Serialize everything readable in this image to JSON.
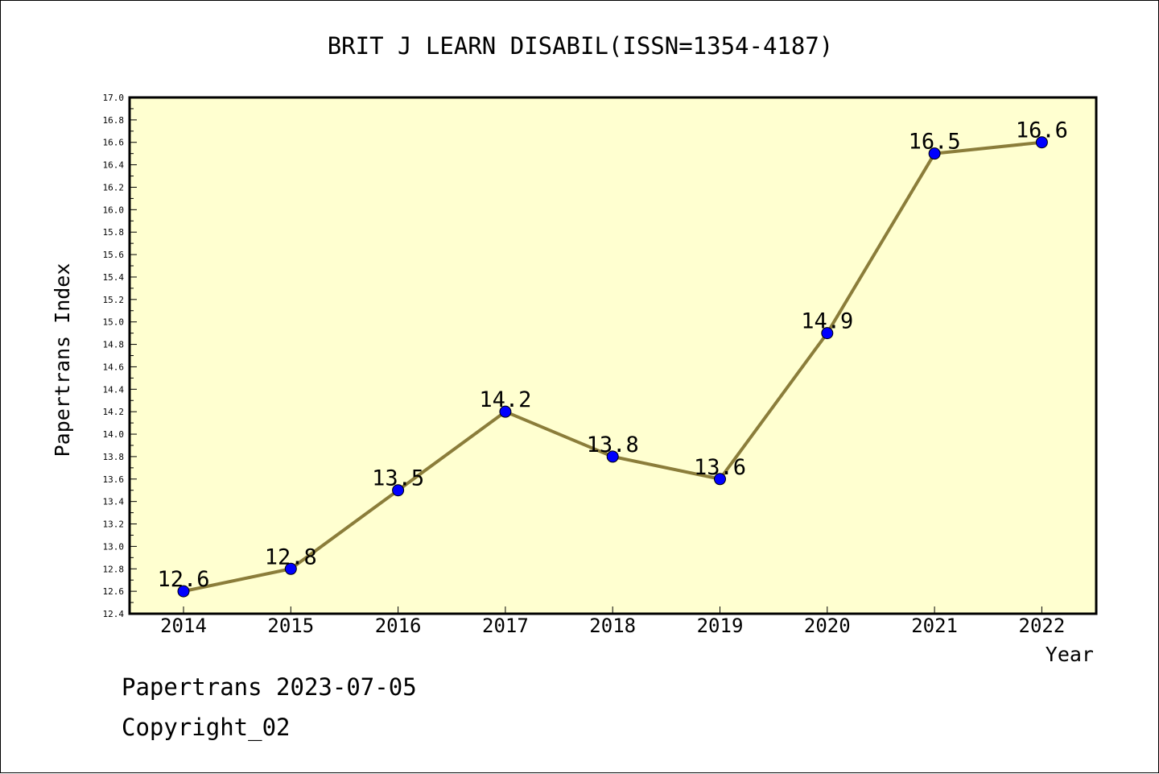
{
  "chart_data": {
    "type": "line",
    "title": "BRIT J LEARN DISABIL(ISSN=1354-4187)",
    "xlabel": "Year",
    "ylabel": "Papertrans Index",
    "categories": [
      "2014",
      "2015",
      "2016",
      "2017",
      "2018",
      "2019",
      "2020",
      "2021",
      "2022"
    ],
    "values": [
      12.6,
      12.8,
      13.5,
      14.2,
      13.8,
      13.6,
      14.9,
      16.5,
      16.6
    ],
    "data_labels": [
      "12.6",
      "12.8",
      "13.5",
      "14.2",
      "13.8",
      "13.6",
      "14.9",
      "16.5",
      "16.6"
    ],
    "ylim": [
      12.4,
      17.0
    ],
    "yticks": [
      "12.4",
      "12.6",
      "12.8",
      "13.0",
      "13.2",
      "13.4",
      "13.6",
      "13.8",
      "14.0",
      "14.2",
      "14.4",
      "14.6",
      "14.8",
      "15.0",
      "15.2",
      "15.4",
      "15.6",
      "15.8",
      "16.0",
      "16.2",
      "16.4",
      "16.6",
      "16.8",
      "17.0"
    ],
    "grid": false,
    "colors": {
      "plot_background": "#ffffd0",
      "line": "#8b7d3a",
      "marker": "#0000ff"
    }
  },
  "footer": {
    "line1": "Papertrans 2023-07-05",
    "line2": "Copyright_02"
  }
}
